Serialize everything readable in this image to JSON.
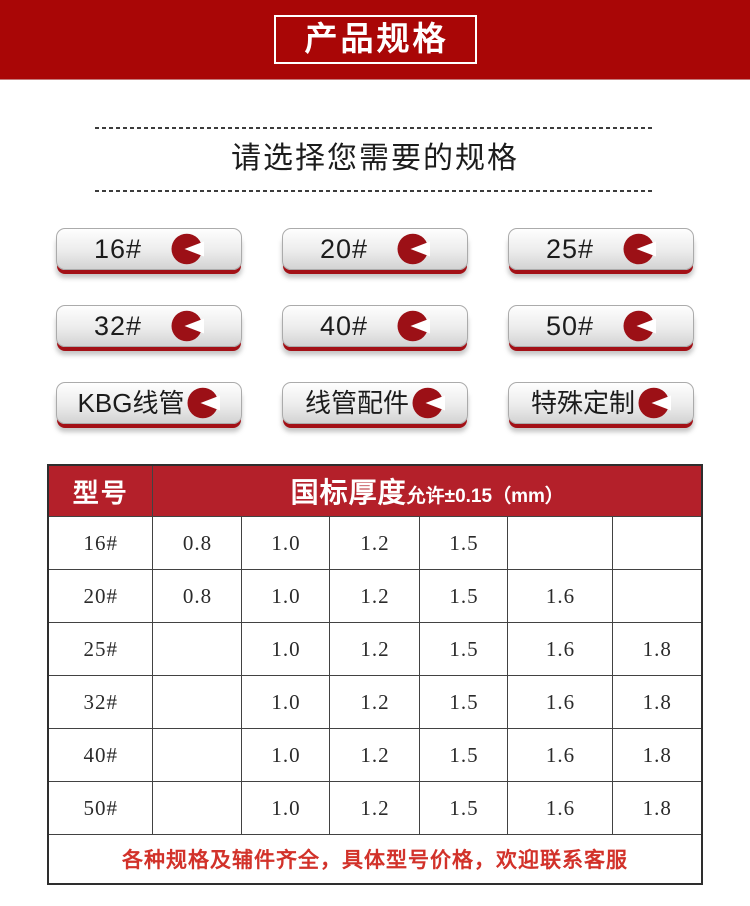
{
  "header": {
    "title": "产品规格",
    "bg_color": "#a90606",
    "text_color": "#ffffff"
  },
  "subtitle": {
    "text": "请选择您需要的规格"
  },
  "spec_buttons": {
    "items": [
      {
        "label": "16#"
      },
      {
        "label": "20#"
      },
      {
        "label": "25#"
      },
      {
        "label": "32#"
      },
      {
        "label": "40#"
      },
      {
        "label": "50#"
      },
      {
        "label": "KBG线管"
      },
      {
        "label": "线管配件"
      },
      {
        "label": "特殊定制"
      }
    ],
    "icon_name": "pie-arrow-icon",
    "icon_color": "#9c1016",
    "shadow_color": "#a31016"
  },
  "table": {
    "header_bg": "#b4202a",
    "col1_header": "型号",
    "col2_header_main": "国标厚度",
    "col2_header_sub": "允许±0.15（mm）",
    "rows": [
      {
        "model": "16#",
        "values": [
          "0.8",
          "1.0",
          "1.2",
          "1.5",
          "",
          ""
        ]
      },
      {
        "model": "20#",
        "values": [
          "0.8",
          "1.0",
          "1.2",
          "1.5",
          "1.6",
          ""
        ]
      },
      {
        "model": "25#",
        "values": [
          "",
          "1.0",
          "1.2",
          "1.5",
          "1.6",
          "1.8"
        ]
      },
      {
        "model": "32#",
        "values": [
          "",
          "1.0",
          "1.2",
          "1.5",
          "1.6",
          "1.8"
        ]
      },
      {
        "model": "40#",
        "values": [
          "",
          "1.0",
          "1.2",
          "1.5",
          "1.6",
          "1.8"
        ]
      },
      {
        "model": "50#",
        "values": [
          "",
          "1.0",
          "1.2",
          "1.5",
          "1.6",
          "1.8"
        ]
      }
    ],
    "footer_note": "各种规格及辅件齐全，具体型号价格，欢迎联系客服",
    "footer_color": "#d2322a"
  }
}
